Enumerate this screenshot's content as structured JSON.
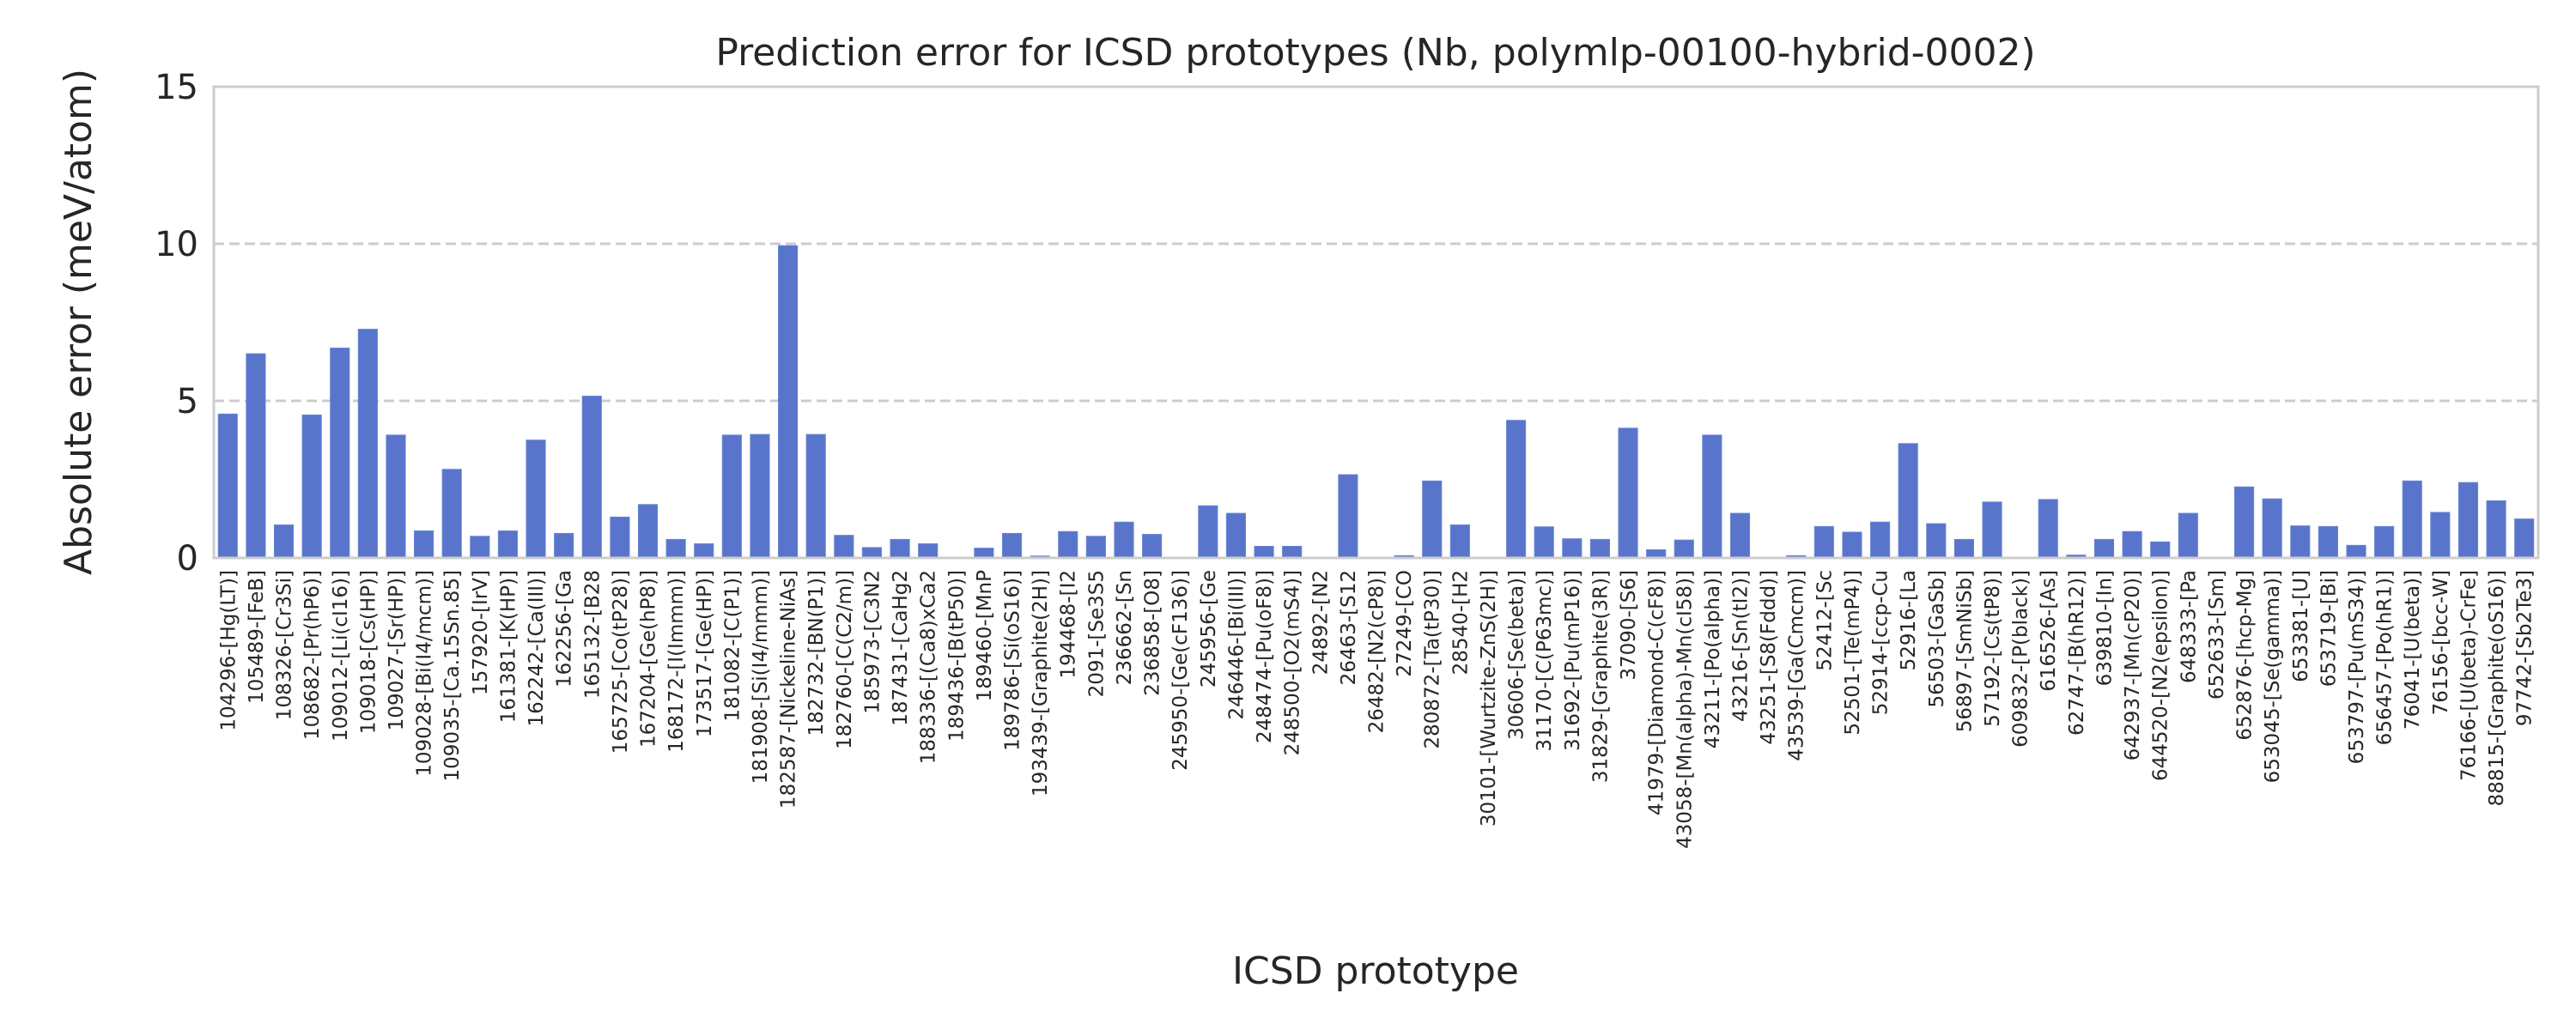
{
  "chart_data": {
    "type": "bar",
    "title": "Prediction error for ICSD prototypes (Nb, polymlp-00100-hybrid-0002)",
    "xlabel": "ICSD prototype",
    "ylabel": "Absolute error (meV/atom)",
    "ylim": [
      0,
      15
    ],
    "yticks": [
      0,
      5,
      10,
      15
    ],
    "grid": "horizontal dashed",
    "bar_color": "#5874cb",
    "categories": [
      "104296-[Hg(LT)]",
      "105489-[FeB]",
      "108326-[Cr3Si]",
      "108682-[Pr(hP6)]",
      "109012-[Li(cI16)]",
      "109018-[Cs(HP)]",
      "109027-[Sr(HP)]",
      "109028-[Bi(I4/mcm)]",
      "109035-[Ca.15Sn.85]",
      "157920-[IrV]",
      "161381-[K(HP)]",
      "162242-[Ca(III)]",
      "162256-[Ga",
      "165132-[B28",
      "165725-[Co(tP28)]",
      "167204-[Ge(hP8)]",
      "168172-[I(Immm)]",
      "173517-[Ge(HP)]",
      "181082-[C(P1)]",
      "181908-[Si(I4/mmm)]",
      "182587-[Nickeline-NiAs]",
      "182732-[BN(P1)]",
      "182760-[C(C2/m)]",
      "185973-[C3N2",
      "187431-[CaHg2",
      "188336-[(Ca8)xCa2",
      "189436-[B(tP50)]",
      "189460-[MnP",
      "189786-[Si(oS16)]",
      "193439-[Graphite(2H)]",
      "194468-[I2",
      "2091-[Se3S5",
      "236662-[Sn",
      "236858-[O8]",
      "245950-[Ge(cF136)]",
      "245956-[Ge",
      "246446-[Bi(III)]",
      "248474-[Pu(oF8)]",
      "248500-[O2(mS4)]",
      "24892-[N2",
      "26463-[S12",
      "26482-[N2(cP8)]",
      "27249-[CO",
      "280872-[Ta(tP30)]",
      "28540-[H2",
      "30101-[Wurtzite-ZnS(2H)]",
      "30606-[Se(beta)]",
      "31170-[C(P63mc)]",
      "31692-[Pu(mP16)]",
      "31829-[Graphite(3R)]",
      "37090-[S6]",
      "41979-[Diamond-C(cF8)]",
      "43058-[Mn(alpha)-Mn(cI58)]",
      "43211-[Po(alpha)]",
      "43216-[Sn(tI2)]",
      "43251-[S8(Fddd)]",
      "43539-[Ga(Cmcm)]",
      "52412-[Sc",
      "52501-[Te(mP4)]",
      "52914-[ccp-Cu",
      "52916-[La",
      "56503-[GaSb]",
      "56897-[SmNiSb]",
      "57192-[Cs(tP8)]",
      "609832-[P(black)]",
      "616526-[As]",
      "62747-[B(hR12)]",
      "639810-[In]",
      "642937-[Mn(cP20)]",
      "644520-[N2(epsilon)]",
      "648333-[Pa",
      "652633-[Sm]",
      "652876-[hcp-Mg]",
      "653045-[Se(gamma)]",
      "653381-[U]",
      "653719-[Bi]",
      "653797-[Pu(mS34)]",
      "656457-[Po(hR1)]",
      "76041-[U(beta)]",
      "76156-[bcc-W]",
      "76166-[U(beta)-CrFe]",
      "88815-[Graphite(oS16)]",
      "97742-[Sb2Te3]"
    ],
    "values": [
      4.58,
      6.5,
      1.05,
      4.55,
      6.68,
      7.28,
      3.91,
      0.86,
      2.82,
      0.69,
      0.86,
      3.75,
      0.78,
      5.15,
      1.3,
      1.7,
      0.59,
      0.45,
      3.91,
      3.93,
      9.94,
      3.93,
      0.72,
      0.33,
      0.59,
      0.45,
      0,
      0.31,
      0.78,
      0.06,
      0.84,
      0.69,
      1.14,
      0.75,
      0,
      1.66,
      1.42,
      0.37,
      0.37,
      0,
      2.65,
      0.02,
      0.07,
      2.45,
      1.05,
      0,
      4.38,
      0.99,
      0.61,
      0.59,
      4.13,
      0.26,
      0.57,
      3.91,
      1.42,
      0.02,
      0.07,
      1.0,
      0.82,
      1.14,
      3.64,
      1.09,
      0.59,
      1.78,
      0,
      1.86,
      0.09,
      0.59,
      0.84,
      0.51,
      1.42,
      0,
      2.26,
      1.88,
      1.02,
      1.0,
      0.4,
      1.0,
      2.45,
      1.45,
      2.4,
      1.82,
      1.24
    ]
  }
}
